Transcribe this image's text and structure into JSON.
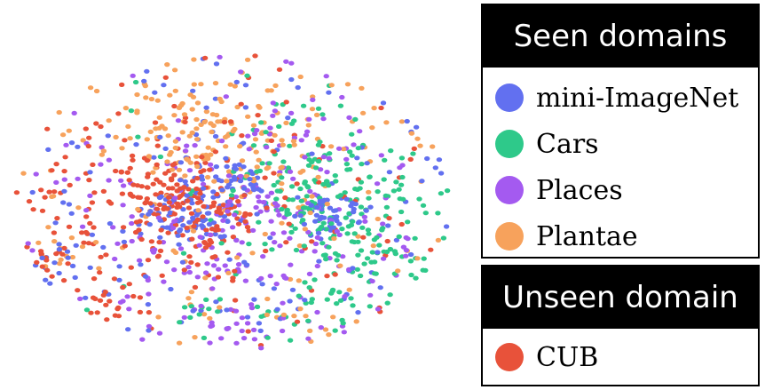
{
  "chart_data": {
    "type": "scatter",
    "title": "",
    "xlabel": "",
    "ylabel": "",
    "grid": false,
    "legend_placement": "right",
    "legend_groups": [
      {
        "title": "Seen domains",
        "entries": [
          {
            "name": "mini-ImageNet",
            "color": "#6270f0"
          },
          {
            "name": "Cars",
            "color": "#2ec98a"
          },
          {
            "name": "Places",
            "color": "#a45af0"
          },
          {
            "name": "Plantae",
            "color": "#f7a25c"
          }
        ]
      },
      {
        "title": "Unseen domain",
        "entries": [
          {
            "name": "CUB",
            "color": "#e8523a"
          }
        ]
      }
    ],
    "series": [
      {
        "name": "mini-ImageNet",
        "color": "#6270f0",
        "clusters": [
          [
            0.4,
            0.54,
            0.05,
            0.04,
            70
          ],
          [
            0.72,
            0.53,
            0.04,
            0.03,
            45
          ],
          [
            0.48,
            0.44,
            0.06,
            0.04,
            40
          ],
          [
            0.5,
            0.5,
            0.42,
            0.36,
            140
          ],
          [
            0.11,
            0.67,
            0.03,
            0.03,
            14
          ]
        ]
      },
      {
        "name": "Cars",
        "color": "#2ec98a",
        "clusters": [
          [
            0.68,
            0.48,
            0.08,
            0.07,
            90
          ],
          [
            0.8,
            0.6,
            0.14,
            0.2,
            140
          ],
          [
            0.6,
            0.5,
            0.3,
            0.3,
            40
          ],
          [
            0.42,
            0.8,
            0.03,
            0.03,
            10
          ]
        ]
      },
      {
        "name": "Places",
        "color": "#a45af0",
        "clusters": [
          [
            0.55,
            0.55,
            0.14,
            0.16,
            130
          ],
          [
            0.5,
            0.5,
            0.42,
            0.36,
            120
          ],
          [
            0.5,
            0.88,
            0.04,
            0.03,
            14
          ]
        ]
      },
      {
        "name": "Plantae",
        "color": "#f7a25c",
        "clusters": [
          [
            0.46,
            0.3,
            0.13,
            0.1,
            150
          ],
          [
            0.5,
            0.45,
            0.4,
            0.35,
            110
          ],
          [
            0.09,
            0.64,
            0.03,
            0.03,
            10
          ],
          [
            0.67,
            0.84,
            0.03,
            0.03,
            10
          ]
        ]
      },
      {
        "name": "CUB",
        "color": "#e8523a",
        "clusters": [
          [
            0.34,
            0.48,
            0.06,
            0.05,
            70
          ],
          [
            0.44,
            0.55,
            0.05,
            0.05,
            50
          ],
          [
            0.3,
            0.55,
            0.22,
            0.25,
            140
          ],
          [
            0.5,
            0.5,
            0.42,
            0.36,
            60
          ],
          [
            0.24,
            0.78,
            0.03,
            0.03,
            10
          ],
          [
            0.08,
            0.67,
            0.03,
            0.02,
            10
          ]
        ]
      }
    ]
  }
}
